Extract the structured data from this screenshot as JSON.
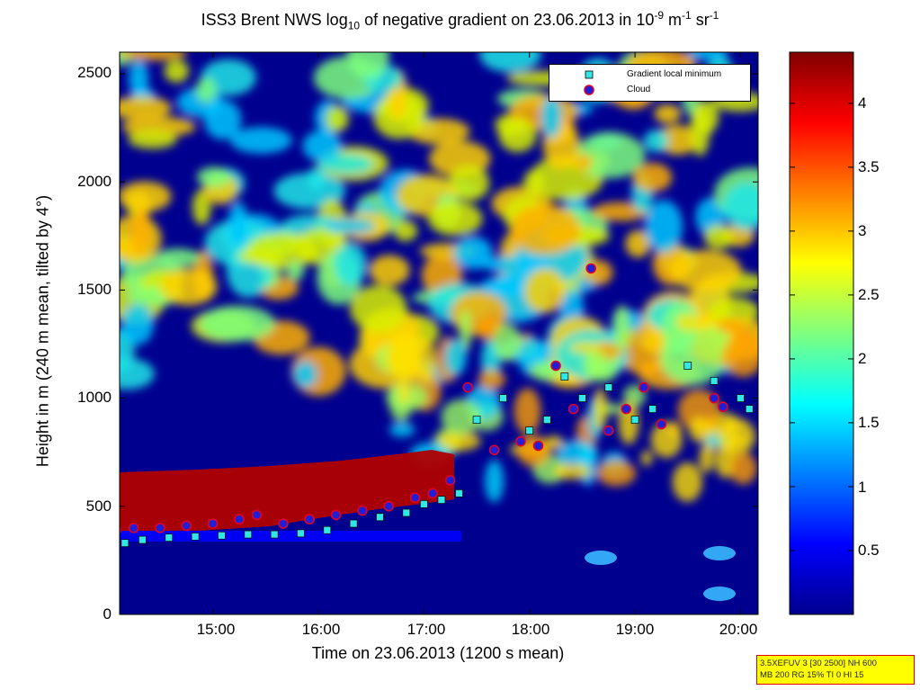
{
  "title": {
    "main": "ISS3 Brent NWS log",
    "base_sub": "10",
    "mid": " of negative gradient on 23.06.2013 in 10",
    "exp1": "-9",
    "unit_m": " m",
    "exp2": "-1",
    "unit_sr": " sr",
    "exp3": "-1"
  },
  "info_box": {
    "line1": "3.5XEFUV 3 [30 2500] NH 600",
    "line2": "MB 200 RG 15% TI 0 HI 15"
  },
  "chart_data": {
    "type": "heatmap",
    "xlabel": "Time on 23.06.2013 (1200 s mean)",
    "ylabel": "Height in m (240 m mean, tilted by 4°)",
    "xlim": [
      "14:07",
      "20:10"
    ],
    "ylim": [
      0,
      2600
    ],
    "x_ticks": [
      "15:00",
      "16:00",
      "17:00",
      "18:00",
      "19:00",
      "20:00"
    ],
    "y_ticks": [
      "0",
      "500",
      "1000",
      "1500",
      "2000",
      "2500"
    ],
    "colorbar": {
      "range": [
        0,
        4.4
      ],
      "ticks": [
        "0.5",
        "1",
        "1.5",
        "2",
        "2.5",
        "3",
        "3.5",
        "4"
      ],
      "colormap": "jet"
    },
    "legend": {
      "placement": "top-right",
      "entries": [
        "Gradient local minimum",
        "Cloud"
      ]
    },
    "colors": {
      "gradient_min_fill": "#33e6e6",
      "cloud_fill": "#1f1fd6",
      "cloud_edge": "#e0002a",
      "infobox_bg": "#ffff00",
      "infobox_border": "#e00000"
    },
    "series": [
      {
        "name": "Gradient local minimum",
        "x": [
          "14:10",
          "14:20",
          "14:35",
          "14:50",
          "15:05",
          "15:20",
          "15:35",
          "15:50",
          "16:05",
          "16:20",
          "16:35",
          "16:50",
          "17:00",
          "17:10",
          "17:20",
          "17:30",
          "17:45",
          "18:00",
          "18:10",
          "18:20",
          "18:30",
          "18:45",
          "19:00",
          "19:10",
          "19:30",
          "19:45",
          "20:00",
          "20:05"
        ],
        "y": [
          330,
          345,
          355,
          360,
          365,
          370,
          370,
          375,
          390,
          420,
          450,
          470,
          510,
          530,
          560,
          900,
          1000,
          850,
          900,
          1100,
          1000,
          1050,
          900,
          950,
          1150,
          1080,
          1000,
          950
        ]
      },
      {
        "name": "Cloud",
        "x": [
          "14:05",
          "14:15",
          "14:30",
          "14:45",
          "15:00",
          "15:15",
          "15:25",
          "15:40",
          "15:55",
          "16:10",
          "16:25",
          "16:40",
          "16:55",
          "17:05",
          "17:15",
          "17:25",
          "17:40",
          "17:55",
          "18:05",
          "18:15",
          "18:25",
          "18:35",
          "18:45",
          "18:55",
          "19:05",
          "19:15",
          "19:45",
          "19:50"
        ],
        "y": [
          390,
          400,
          400,
          410,
          420,
          440,
          460,
          420,
          440,
          460,
          480,
          500,
          540,
          560,
          620,
          1050,
          760,
          800,
          780,
          1150,
          950,
          1600,
          850,
          950,
          1050,
          880,
          1000,
          960
        ]
      }
    ]
  }
}
